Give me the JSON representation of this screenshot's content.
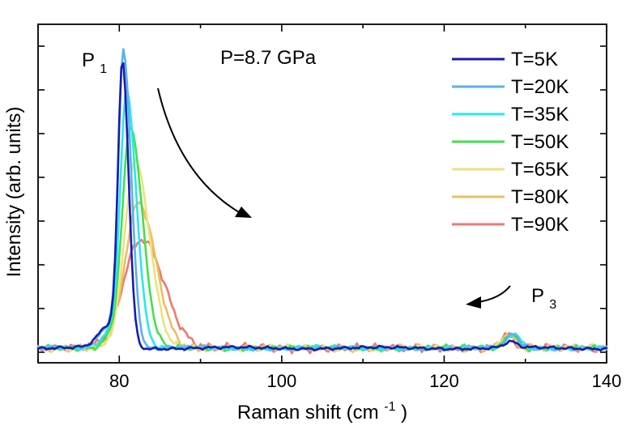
{
  "chart_data": {
    "type": "line",
    "title": "",
    "annotation_pressure": "P=8.7 GPa",
    "xlabel_prefix": "Raman shift (cm",
    "xlabel_superscript": "-1",
    "xlabel_suffix": ")",
    "ylabel": "Intensity (arb. units)",
    "xlim": [
      70,
      140
    ],
    "ylim": [
      -0.05,
      1.1
    ],
    "grid": false,
    "legend_position": "top-right",
    "x_ticks": [
      80,
      100,
      120,
      140
    ],
    "x_tick_labels": [
      "80",
      "100",
      "120",
      "140"
    ],
    "peak_labels": [
      {
        "base": "P",
        "sub": "1"
      },
      {
        "base": "P",
        "sub": "3"
      }
    ],
    "series": [
      {
        "name": "T=5K",
        "color": "#1a1ab4",
        "peak_center": 80.4,
        "peak_height": 0.96,
        "width_left": 0.55,
        "width_right": 0.75,
        "p3_center": 128.2,
        "p3_height": 0.02,
        "noise": 0.006
      },
      {
        "name": "T=20K",
        "color": "#5ab1ea",
        "peak_center": 80.5,
        "peak_height": 1.0,
        "width_left": 0.6,
        "width_right": 0.95,
        "p3_center": 128.5,
        "p3_height": 0.045,
        "noise": 0.007
      },
      {
        "name": "T=35K",
        "color": "#26e8f0",
        "peak_center": 80.9,
        "peak_height": 0.86,
        "width_left": 0.75,
        "width_right": 1.2,
        "p3_center": 128.7,
        "p3_height": 0.05,
        "noise": 0.008
      },
      {
        "name": "T=50K",
        "color": "#43e04d",
        "peak_center": 81.4,
        "peak_height": 0.74,
        "width_left": 0.95,
        "width_right": 1.45,
        "p3_center": 128.3,
        "p3_height": 0.05,
        "noise": 0.01
      },
      {
        "name": "T=65K",
        "color": "#ece27c",
        "peak_center": 82.0,
        "peak_height": 0.62,
        "width_left": 1.2,
        "width_right": 1.75,
        "p3_center": 128.0,
        "p3_height": 0.05,
        "noise": 0.012
      },
      {
        "name": "T=80K",
        "color": "#efbd60",
        "peak_center": 82.5,
        "peak_height": 0.48,
        "width_left": 1.6,
        "width_right": 2.05,
        "p3_center": 127.9,
        "p3_height": 0.05,
        "noise": 0.014
      },
      {
        "name": "T=90K",
        "color": "#f27770",
        "peak_center": 83.0,
        "peak_height": 0.36,
        "width_left": 2.3,
        "width_right": 2.6,
        "p3_center": 127.8,
        "p3_height": 0.045,
        "noise": 0.016
      }
    ]
  }
}
